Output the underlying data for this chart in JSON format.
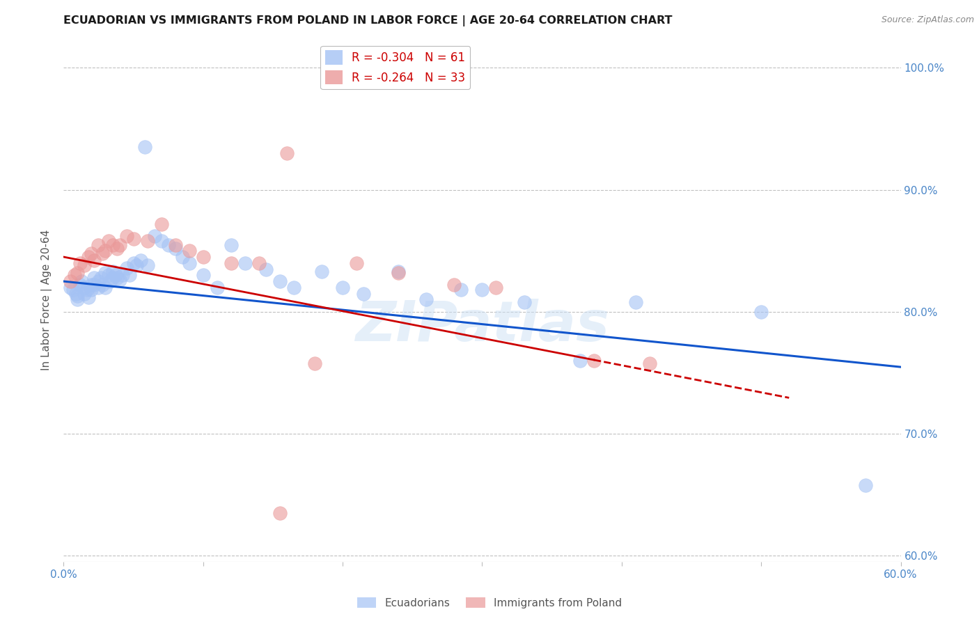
{
  "title": "ECUADORIAN VS IMMIGRANTS FROM POLAND IN LABOR FORCE | AGE 20-64 CORRELATION CHART",
  "source": "Source: ZipAtlas.com",
  "ylabel": "In Labor Force | Age 20-64",
  "xlim": [
    0.0,
    0.6
  ],
  "ylim": [
    0.595,
    1.025
  ],
  "xticks": [
    0.0,
    0.1,
    0.2,
    0.3,
    0.4,
    0.5,
    0.6
  ],
  "xticklabels": [
    "0.0%",
    "",
    "",
    "",
    "",
    "",
    "60.0%"
  ],
  "yticks": [
    0.6,
    0.7,
    0.8,
    0.9,
    1.0
  ],
  "yticklabels": [
    "60.0%",
    "70.0%",
    "80.0%",
    "90.0%",
    "100.0%"
  ],
  "blue_R": -0.304,
  "blue_N": 61,
  "pink_R": -0.264,
  "pink_N": 33,
  "blue_color": "#a4c2f4",
  "pink_color": "#ea9999",
  "blue_line_color": "#1155cc",
  "pink_line_color": "#cc0000",
  "watermark": "ZIPatlas",
  "blue_scatter_x": [
    0.005,
    0.007,
    0.009,
    0.01,
    0.01,
    0.012,
    0.013,
    0.015,
    0.015,
    0.017,
    0.018,
    0.02,
    0.02,
    0.022,
    0.022,
    0.025,
    0.025,
    0.027,
    0.028,
    0.03,
    0.03,
    0.032,
    0.033,
    0.035,
    0.035,
    0.037,
    0.038,
    0.04,
    0.042,
    0.045,
    0.047,
    0.05,
    0.052,
    0.055,
    0.058,
    0.06,
    0.065,
    0.07,
    0.075,
    0.08,
    0.085,
    0.09,
    0.1,
    0.11,
    0.12,
    0.13,
    0.145,
    0.155,
    0.165,
    0.185,
    0.2,
    0.215,
    0.24,
    0.26,
    0.285,
    0.3,
    0.33,
    0.37,
    0.41,
    0.5,
    0.575
  ],
  "blue_scatter_y": [
    0.82,
    0.818,
    0.815,
    0.813,
    0.81,
    0.822,
    0.825,
    0.82,
    0.815,
    0.818,
    0.812,
    0.822,
    0.818,
    0.828,
    0.822,
    0.825,
    0.82,
    0.828,
    0.822,
    0.832,
    0.82,
    0.83,
    0.825,
    0.833,
    0.828,
    0.83,
    0.828,
    0.826,
    0.83,
    0.836,
    0.83,
    0.84,
    0.838,
    0.842,
    0.935,
    0.838,
    0.862,
    0.858,
    0.855,
    0.852,
    0.845,
    0.84,
    0.83,
    0.82,
    0.855,
    0.84,
    0.835,
    0.825,
    0.82,
    0.833,
    0.82,
    0.815,
    0.833,
    0.81,
    0.818,
    0.818,
    0.808,
    0.76,
    0.808,
    0.8,
    0.658
  ],
  "pink_scatter_x": [
    0.005,
    0.008,
    0.01,
    0.012,
    0.015,
    0.018,
    0.02,
    0.022,
    0.025,
    0.028,
    0.03,
    0.032,
    0.035,
    0.038,
    0.04,
    0.045,
    0.05,
    0.06,
    0.07,
    0.08,
    0.09,
    0.1,
    0.12,
    0.14,
    0.16,
    0.18,
    0.21,
    0.24,
    0.28,
    0.31,
    0.38,
    0.42,
    0.155
  ],
  "pink_scatter_y": [
    0.825,
    0.83,
    0.832,
    0.84,
    0.838,
    0.845,
    0.848,
    0.842,
    0.855,
    0.848,
    0.85,
    0.858,
    0.855,
    0.852,
    0.855,
    0.862,
    0.86,
    0.858,
    0.872,
    0.855,
    0.85,
    0.845,
    0.84,
    0.84,
    0.93,
    0.758,
    0.84,
    0.832,
    0.822,
    0.82,
    0.76,
    0.758,
    0.635
  ],
  "legend_label_blue": "Ecuadorians",
  "legend_label_pink": "Immigrants from Poland",
  "background_color": "#ffffff",
  "grid_color": "#c0c0c0"
}
